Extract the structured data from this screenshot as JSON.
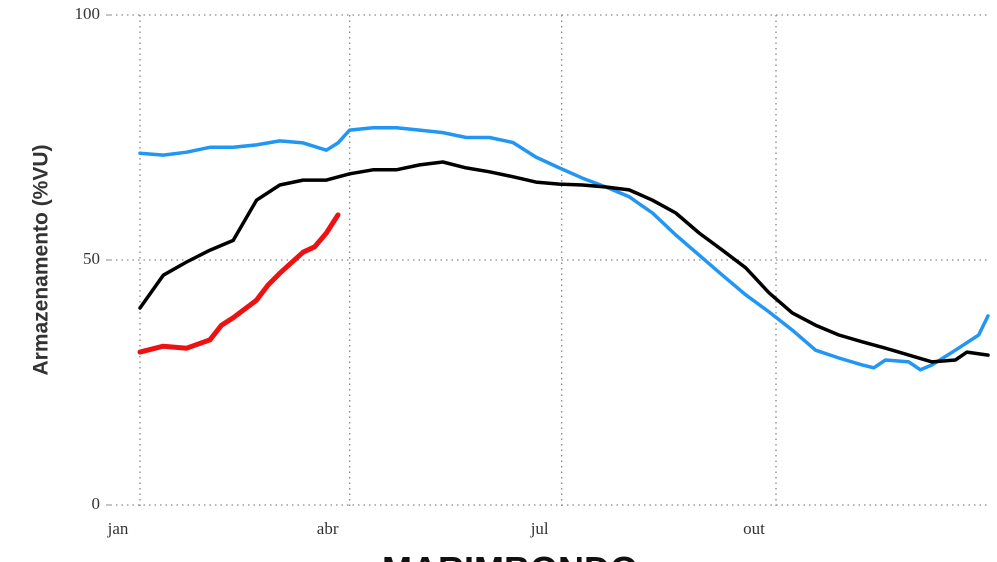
{
  "chart_data": {
    "type": "line",
    "title": "MARIMBONDO",
    "y_label": "Armazenamento (%VU)",
    "xlim": [
      1,
      365
    ],
    "xticks": [
      {
        "value": 1,
        "label": "jan"
      },
      {
        "value": 91,
        "label": "abr"
      },
      {
        "value": 182,
        "label": "jul"
      },
      {
        "value": 274,
        "label": "out"
      }
    ],
    "ylim": [
      0,
      100
    ],
    "yticks": [
      0,
      50,
      100
    ],
    "grid": true,
    "series": [
      {
        "color": "#2196f3",
        "x": [
          1,
          11,
          21,
          31,
          41,
          51,
          61,
          71,
          81,
          86,
          91,
          101,
          111,
          121,
          131,
          141,
          151,
          161,
          171,
          181,
          191,
          201,
          211,
          221,
          231,
          241,
          251,
          261,
          271,
          281,
          291,
          301,
          311,
          316,
          321,
          331,
          336,
          341,
          351,
          361,
          365
        ],
        "values": [
          71.8,
          71.4,
          72,
          73,
          73,
          73.5,
          74.3,
          73.9,
          72.4,
          73.9,
          76.5,
          77,
          77,
          76.5,
          76,
          75,
          75,
          74,
          71,
          68.8,
          66.7,
          64.9,
          62.9,
          59.6,
          55.1,
          51,
          46.9,
          42.9,
          39.4,
          35.7,
          31.6,
          30,
          28.6,
          28,
          29.6,
          29.2,
          27.6,
          28.6,
          31.6,
          34.7,
          38.6
        ]
      },
      {
        "color": "#000000",
        "x": [
          1,
          11,
          21,
          31,
          41,
          51,
          61,
          71,
          81,
          91,
          101,
          111,
          121,
          131,
          141,
          151,
          161,
          171,
          181,
          191,
          201,
          211,
          221,
          231,
          241,
          251,
          261,
          271,
          281,
          291,
          301,
          311,
          321,
          331,
          341,
          351,
          356,
          365
        ],
        "values": [
          40.2,
          46.9,
          49.6,
          52,
          54,
          62.2,
          65.3,
          66.3,
          66.3,
          67.6,
          68.4,
          68.4,
          69.4,
          70,
          68.8,
          68,
          67,
          65.9,
          65.5,
          65.3,
          64.9,
          64.3,
          62.2,
          59.6,
          55.5,
          52,
          48.4,
          43.3,
          39.2,
          36.7,
          34.7,
          33.3,
          32,
          30.6,
          29.2,
          29.6,
          31.2,
          30.6
        ]
      },
      {
        "color": "#ee1111",
        "x": [
          1,
          11,
          21,
          31,
          36,
          41,
          51,
          56,
          61,
          71,
          76,
          81,
          86
        ],
        "values": [
          31.2,
          32.4,
          32,
          33.7,
          36.7,
          38.2,
          41.8,
          44.9,
          47.3,
          51.6,
          52.7,
          55.5,
          59.2
        ]
      }
    ]
  }
}
